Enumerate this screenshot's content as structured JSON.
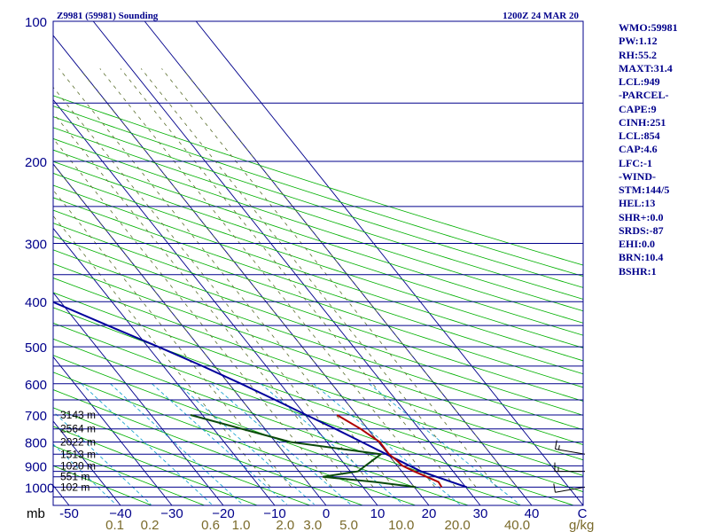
{
  "header": {
    "station": "Z9981 (59981) Sounding",
    "time": "1200Z 24 MAR 20"
  },
  "stats": [
    "WMO:59981",
    "PW:1.12",
    "RH:55.2",
    "MAXT:31.4",
    "LCL:949",
    "-PARCEL-",
    "CAPE:9",
    "CINH:251",
    "LCL:854",
    "CAP:4.6",
    "LFC:-1",
    "-WIND-",
    "STM:144/5",
    "HEL:13",
    "SHR+:0.0",
    "SRDS:-87",
    "EHI:0.0",
    "BRN:10.4",
    "BSHR:1"
  ],
  "colors": {
    "background": "#ffffff",
    "frame": "#00008b",
    "isobar": "#00008b",
    "isotherm": "#00008b",
    "dry_adiabat": "#00b000",
    "moist_adiabat": "#5a6e2c",
    "mixing_ratio": "#1aa4d0",
    "temperature": "#b00000",
    "dewpoint": "#0a4a0a",
    "parcel": "#00009c",
    "mixing_ratio_labels": "#7a6a2a",
    "wind": "#000000"
  },
  "chart_data": {
    "type": "line",
    "diagram": "skew-T log-p",
    "title": "Z9981 (59981) Sounding",
    "subtitle": "1200Z 24 MAR 20",
    "ylabel": "mb",
    "xlabel": "",
    "ylim": [
      1050,
      100
    ],
    "xlim": [
      -50,
      40
    ],
    "pressure_ticks": [
      100,
      200,
      300,
      400,
      500,
      600,
      700,
      800,
      900,
      1000
    ],
    "temperature_ticks": [
      -50,
      -40,
      -30,
      -20,
      -10,
      0,
      10,
      20,
      30,
      40
    ],
    "temperature_tick_labels": [
      "-50",
      "−40",
      "−30",
      "−20",
      "−10",
      "0",
      "10",
      "20",
      "30",
      "40"
    ],
    "temperature_tick_suffix": "C",
    "isobar_levels": [
      100,
      150,
      200,
      250,
      300,
      350,
      400,
      450,
      500,
      550,
      600,
      650,
      700,
      750,
      800,
      850,
      900,
      925,
      950,
      1000,
      1050
    ],
    "mixing_ratio_values": [
      0.1,
      0.2,
      0.6,
      1.0,
      2.0,
      3.0,
      5.0,
      10.0,
      20.0,
      40.0
    ],
    "mixing_ratio_labels": [
      "0.1",
      "0.2",
      "0.6",
      "1.0",
      "2.0",
      "3.0",
      "5.0",
      "10.0",
      "20.0",
      "40.0"
    ],
    "mixing_ratio_unit": "g/kg",
    "height_labels": [
      {
        "p": 700,
        "label": "3143 m"
      },
      {
        "p": 750,
        "label": "2564 m"
      },
      {
        "p": 800,
        "label": "2022 m"
      },
      {
        "p": 850,
        "label": "1513 m"
      },
      {
        "p": 900,
        "label": "1020 m"
      },
      {
        "p": 950,
        "label": "551 m"
      },
      {
        "p": 1000,
        "label": "102 m"
      }
    ],
    "series": [
      {
        "key": "parcel",
        "points": [
          {
            "p": 1000,
            "t": 30.2
          },
          {
            "p": 950,
            "t": 25.9
          },
          {
            "p": 925,
            "t": 23.8
          },
          {
            "p": 900,
            "t": 22.4
          },
          {
            "p": 850,
            "t": 19.7
          },
          {
            "p": 800,
            "t": 16.8
          },
          {
            "p": 750,
            "t": 13.7
          },
          {
            "p": 700,
            "t": 10.2
          },
          {
            "p": 650,
            "t": 6.5
          },
          {
            "p": 600,
            "t": 2.4
          },
          {
            "p": 550,
            "t": -2.4
          },
          {
            "p": 500,
            "t": -8.0
          },
          {
            "p": 450,
            "t": -14.5
          },
          {
            "p": 400,
            "t": -21.6
          },
          {
            "p": 350,
            "t": -30.2
          },
          {
            "p": 300,
            "t": -39.5
          },
          {
            "p": 250,
            "t": -51.0
          },
          {
            "p": 200,
            "t": -64.4
          },
          {
            "p": 150,
            "t": -80.6
          },
          {
            "p": 115,
            "t": -95.0
          }
        ]
      },
      {
        "key": "temperature",
        "points": [
          {
            "p": 1000,
            "t": 25.3
          },
          {
            "p": 975,
            "t": 25.5
          },
          {
            "p": 950,
            "t": 24.0
          },
          {
            "p": 925,
            "t": 22.4
          },
          {
            "p": 900,
            "t": 21.0
          },
          {
            "p": 875,
            "t": 20.7
          },
          {
            "p": 850,
            "t": 20.2
          },
          {
            "p": 800,
            "t": 20.3
          },
          {
            "p": 750,
            "t": 18.6
          },
          {
            "p": 700,
            "t": 16.2
          }
        ]
      },
      {
        "key": "dewpoint",
        "points": [
          {
            "p": 1000,
            "t": 20.3
          },
          {
            "p": 975,
            "t": 13.2
          },
          {
            "p": 950,
            "t": 3.8
          },
          {
            "p": 925,
            "t": 11.5
          },
          {
            "p": 850,
            "t": 18.6
          },
          {
            "p": 800,
            "t": 2.9
          },
          {
            "p": 700,
            "t": -12.3
          }
        ]
      }
    ],
    "wind": [
      {
        "p": 850,
        "dir": 280,
        "spd": 15
      },
      {
        "p": 925,
        "dir": 270,
        "spd": 15
      },
      {
        "p": 1000,
        "dir": 260,
        "spd": 10
      }
    ],
    "grid": true,
    "legend": "none"
  }
}
